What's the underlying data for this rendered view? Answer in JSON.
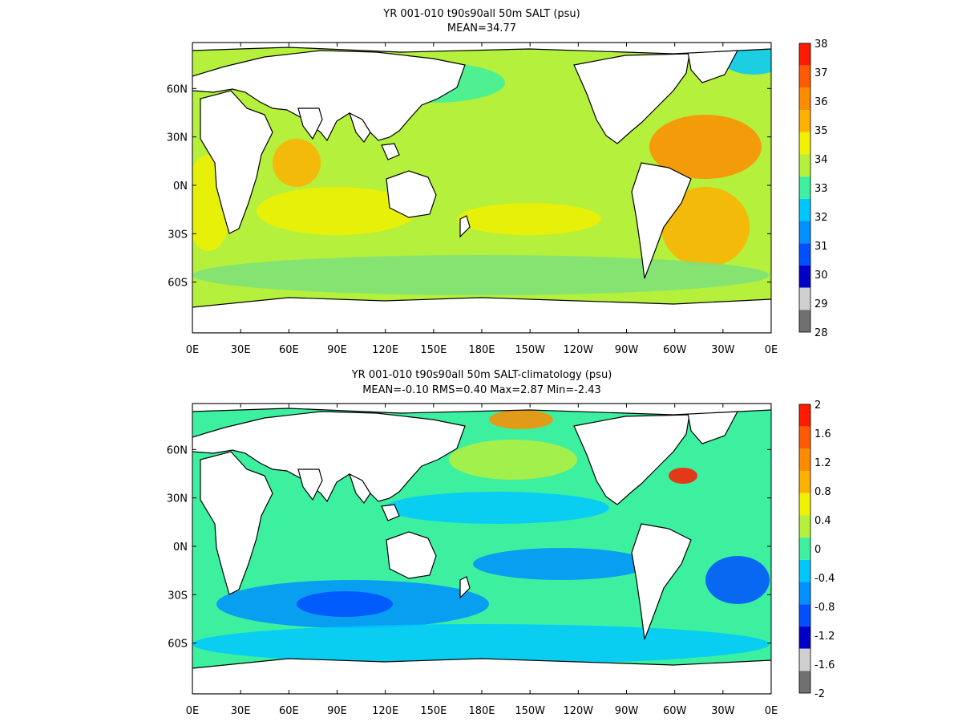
{
  "panels": [
    {
      "title": "YR 001-010 t90s90all 50m SALT (psu)",
      "subtitle": "MEAN=34.77",
      "colorbar_labels": [
        "38",
        "37",
        "36",
        "35",
        "34",
        "33",
        "32",
        "31",
        "30",
        "29",
        "28"
      ],
      "colorbar_colors": [
        "#ff1a00",
        "#ff5a00",
        "#ff8c00",
        "#ffb000",
        "#f0f000",
        "#b4f03c",
        "#3cf0a0",
        "#00c8ff",
        "#0090ff",
        "#0050ff",
        "#0000c8",
        "#d0d0d0",
        "#707070"
      ]
    },
    {
      "title": "YR 001-010 t90s90all 50m SALT-climatology (psu)",
      "subtitle": "MEAN=-0.10   RMS=0.40   Max=2.87   Min=-2.43",
      "colorbar_labels": [
        "2",
        "1.6",
        "1.2",
        "0.8",
        "0.4",
        "0",
        "-0.4",
        "-0.8",
        "-1.2",
        "-1.6",
        "-2"
      ],
      "colorbar_colors": [
        "#ff1a00",
        "#ff5a00",
        "#ff8c00",
        "#ffb000",
        "#f0f000",
        "#b4f03c",
        "#3cf0a0",
        "#00c8ff",
        "#0090ff",
        "#0050ff",
        "#0000c8",
        "#d0d0d0",
        "#707070"
      ]
    }
  ],
  "x_ticks": [
    "0E",
    "30E",
    "60E",
    "90E",
    "120E",
    "150E",
    "180E",
    "150W",
    "120W",
    "90W",
    "60W",
    "30W",
    "0E"
  ],
  "y_ticks": [
    "60N",
    "30N",
    "0N",
    "30S",
    "60S"
  ],
  "colors": {
    "land": "#ffffff",
    "coast": "#000000",
    "mean_ocean": "#b4f03c",
    "diff_ocean": "#3cf0a0"
  }
}
